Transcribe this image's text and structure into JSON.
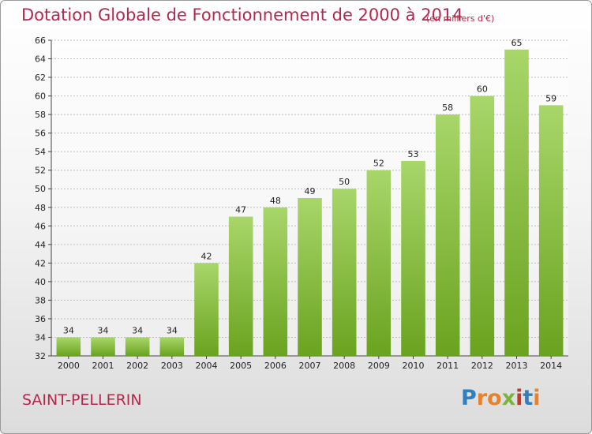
{
  "title": "Dotation Globale de Fonctionnement de 2000 à 2014",
  "subtitle": "(en milliers d'€)",
  "commune": "SAINT-PELLERIN",
  "logo": {
    "letters": [
      "P",
      "r",
      "o",
      "x",
      "i",
      "t",
      "i"
    ],
    "colors": [
      "#2f7fc1",
      "#e7822a",
      "#e7822a",
      "#7bb43a",
      "#c0392b",
      "#2f7fc1",
      "#e7822a"
    ]
  },
  "colors": {
    "bar_light": "#a8d66a",
    "bar_dark": "#6aa31f",
    "title": "#b5274c",
    "grid": "#bdbdbd"
  },
  "chart_data": {
    "type": "bar",
    "categories": [
      "2000",
      "2001",
      "2002",
      "2003",
      "2004",
      "2005",
      "2006",
      "2007",
      "2008",
      "2009",
      "2010",
      "2011",
      "2012",
      "2013",
      "2014"
    ],
    "values": [
      34,
      34,
      34,
      34,
      42,
      47,
      48,
      49,
      50,
      52,
      53,
      58,
      60,
      65,
      59
    ],
    "ylim": [
      32,
      66
    ],
    "yticks": [
      32,
      34,
      36,
      38,
      40,
      42,
      44,
      46,
      48,
      50,
      52,
      54,
      56,
      58,
      60,
      62,
      64,
      66
    ],
    "grid": true,
    "data_labels": true
  }
}
